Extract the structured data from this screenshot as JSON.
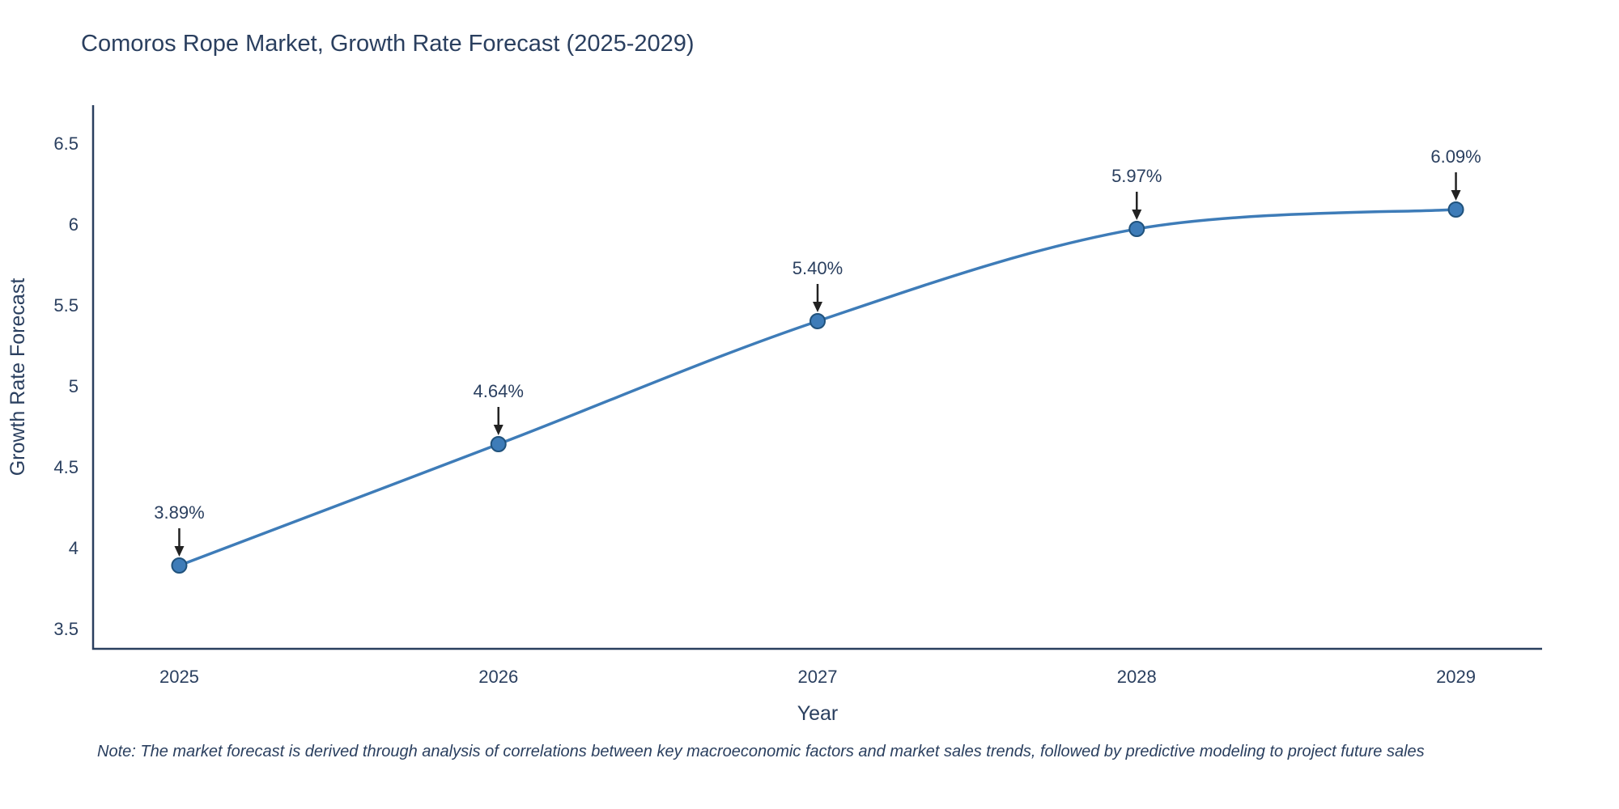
{
  "title": "Comoros Rope Market, Growth Rate Forecast (2025-2029)",
  "note": "Note: The market forecast is derived through analysis of correlations between key macroeconomic factors and market sales trends, followed by predictive modeling to project future sales",
  "chart_data": {
    "type": "line",
    "title": "Comoros Rope Market, Growth Rate Forecast (2025-2029)",
    "xlabel": "Year",
    "ylabel": "Growth Rate Forecast",
    "x": [
      2025,
      2026,
      2027,
      2028,
      2029
    ],
    "values": [
      3.89,
      4.64,
      5.4,
      5.97,
      6.09
    ],
    "point_labels": [
      "3.89%",
      "4.64%",
      "5.40%",
      "5.97%",
      "6.09%"
    ],
    "xtick_labels": [
      "2025",
      "2026",
      "2027",
      "2028",
      "2029"
    ],
    "yticks": [
      3.5,
      4,
      4.5,
      5,
      5.5,
      6,
      6.5
    ],
    "ytick_labels": [
      "3.5",
      "4",
      "4.5",
      "5",
      "5.5",
      "6",
      "6.5"
    ],
    "ylim": [
      3.375,
      6.735
    ],
    "xlim": [
      2024.73,
      2029.27
    ],
    "grid": false,
    "legend": "none",
    "line_shape": "spline",
    "line_color": "#3e7cb8",
    "marker_color": "#3e7cb8",
    "marker_edge_color": "#20527c",
    "axis_color": "#2a3f5f",
    "arrow_color": "#222222",
    "text_color": "#2a3f5f"
  }
}
